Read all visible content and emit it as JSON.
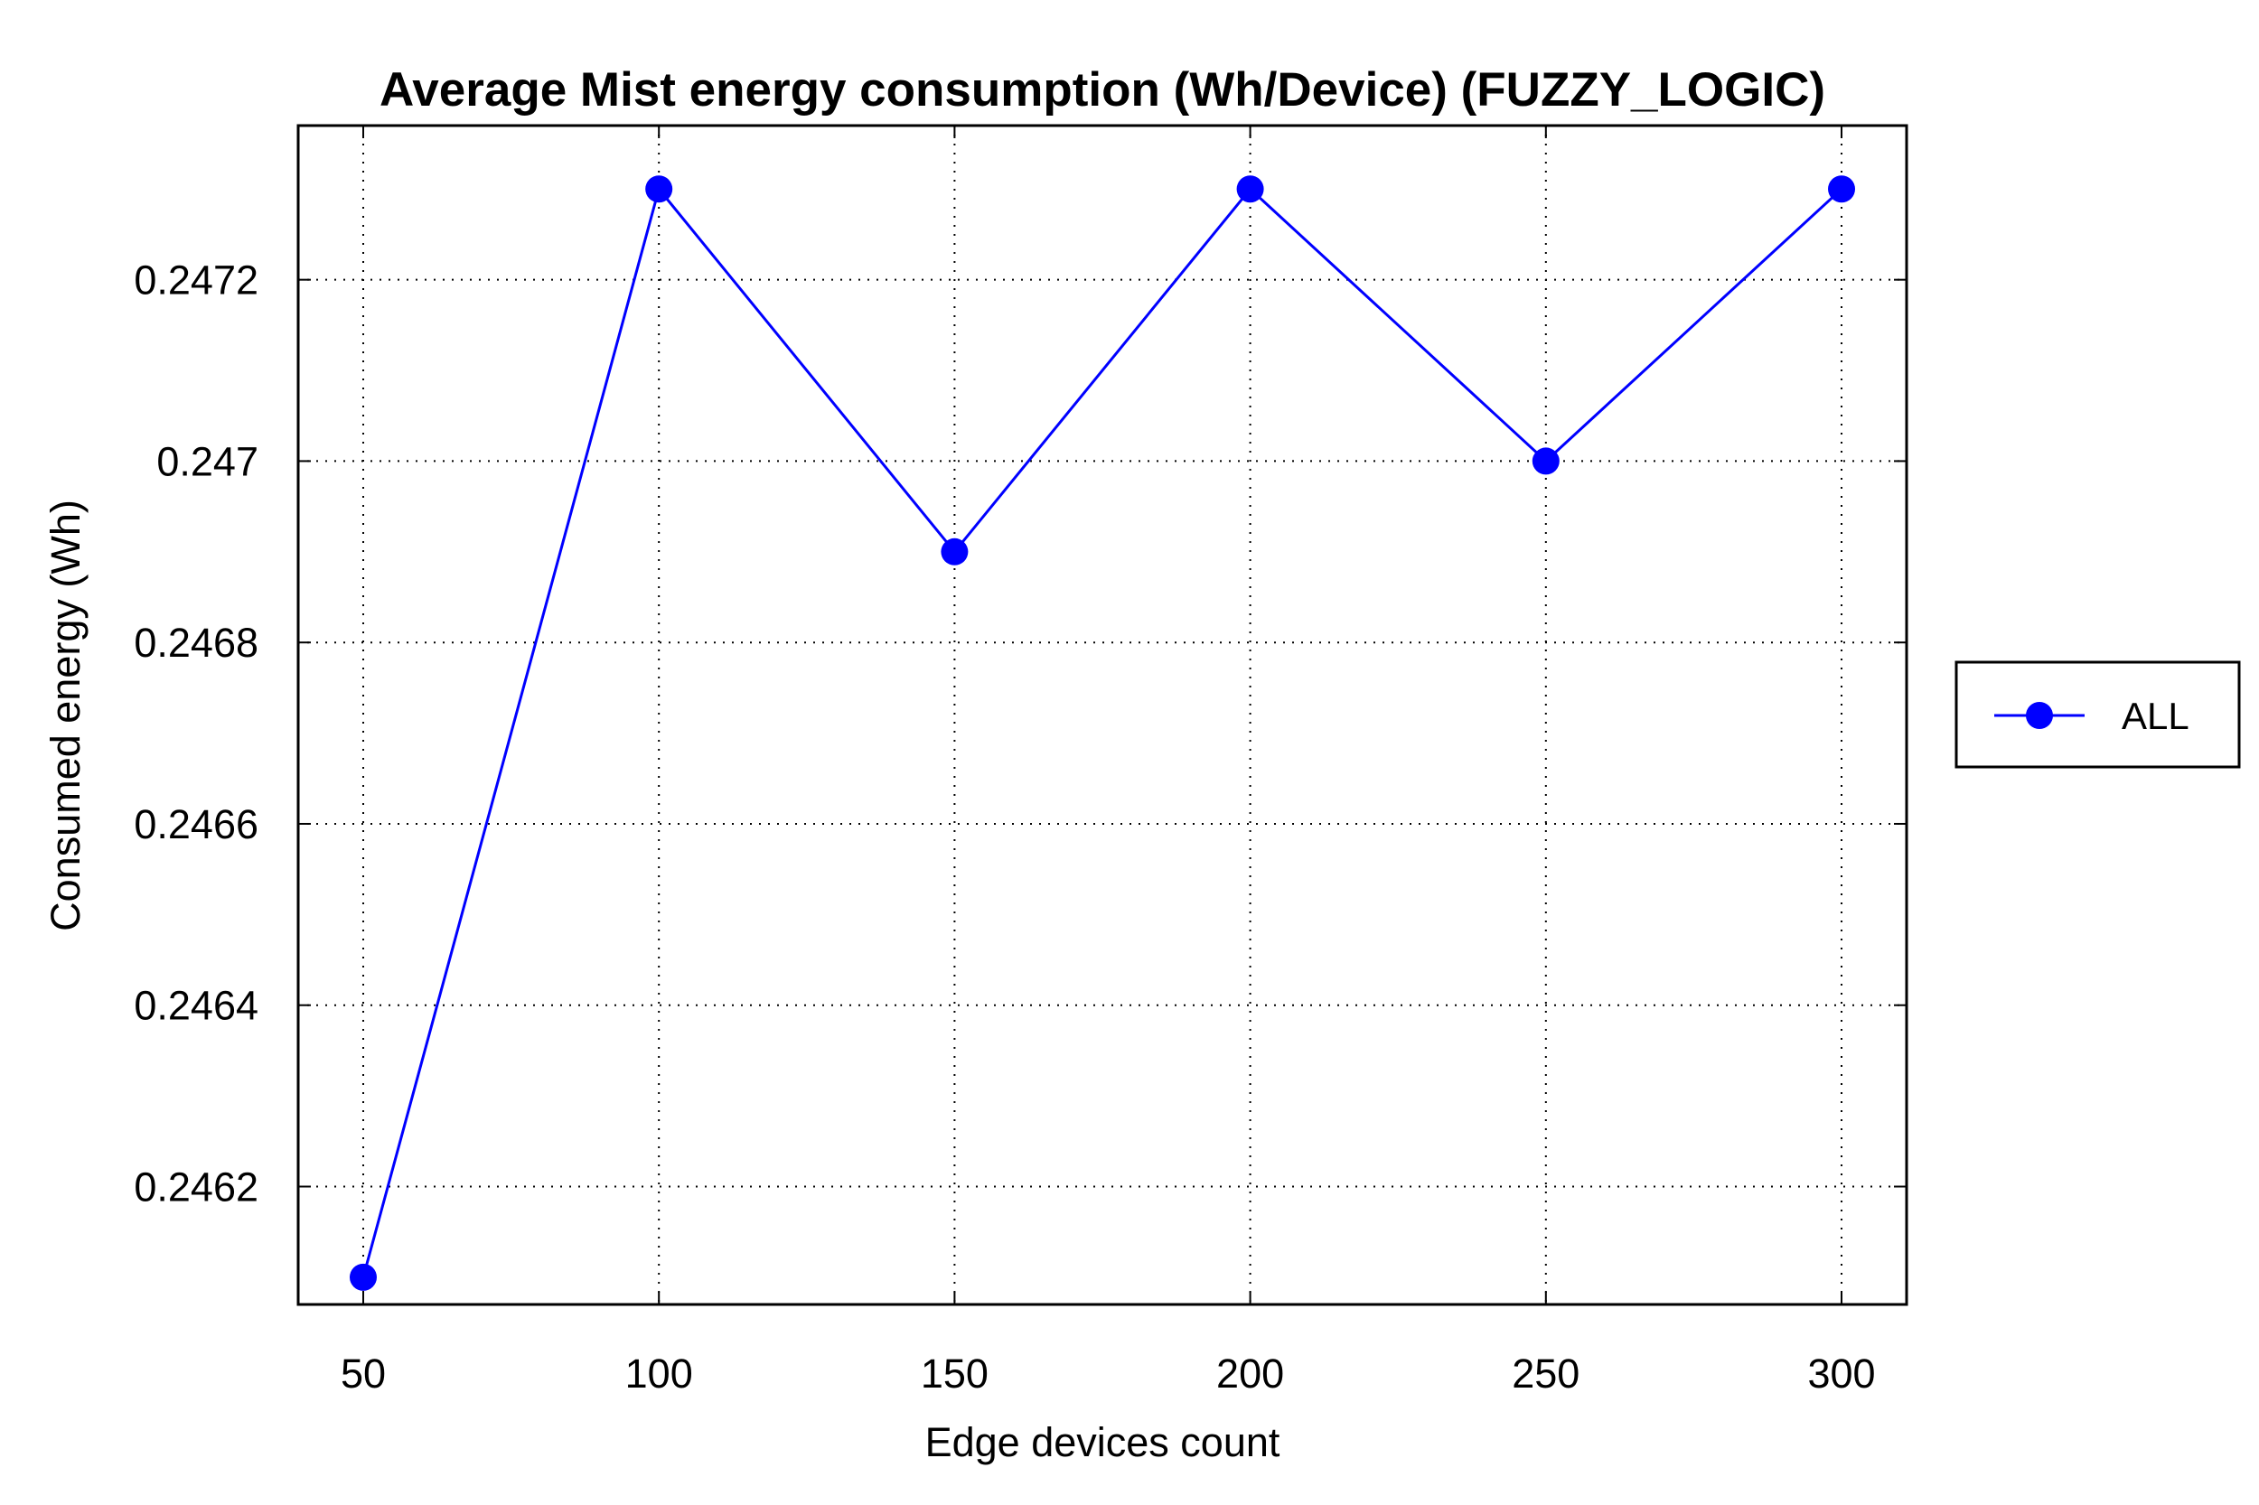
{
  "chart_data": {
    "type": "line",
    "title": "Average Mist energy consumption (Wh/Device) (FUZZY_LOGIC)",
    "xlabel": "Edge devices count",
    "ylabel": "Consumed energy (Wh)",
    "x": [
      50,
      100,
      150,
      200,
      250,
      300
    ],
    "xticks": [
      "50",
      "100",
      "150",
      "200",
      "250",
      "300"
    ],
    "yticks": [
      "0.2462",
      "0.2464",
      "0.2466",
      "0.2468",
      "0.247",
      "0.2472"
    ],
    "ytick_values": [
      0.2462,
      0.2464,
      0.2466,
      0.2468,
      0.247,
      0.2472
    ],
    "xlim": [
      39,
      311
    ],
    "ylim": [
      0.24607,
      0.24737
    ],
    "grid": true,
    "legend_position": "right",
    "series": [
      {
        "name": "ALL",
        "color": "#0000ff",
        "marker": "circle",
        "values": [
          0.2461,
          0.2473,
          0.2469,
          0.2473,
          0.247,
          0.2473
        ]
      }
    ]
  }
}
